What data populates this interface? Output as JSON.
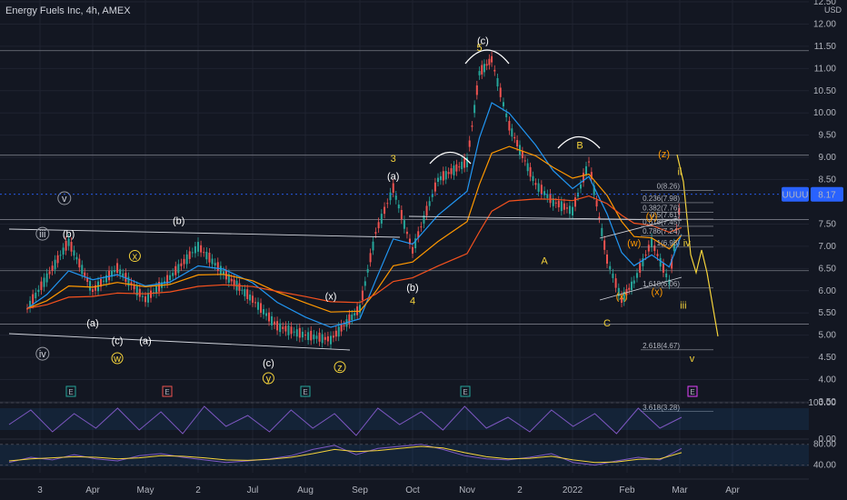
{
  "header": {
    "title": "Energy Fuels Inc, 4h, AMEX",
    "currency": "USD"
  },
  "price_tag": {
    "symbol": "UUUU",
    "value": "8.17",
    "color": "#2962ff"
  },
  "colors": {
    "background": "#131722",
    "up": "#26a69a",
    "down": "#ef5350",
    "ema_fast": "#2196f3",
    "ema_mid": "#ff9800",
    "ema_slow": "#f4511e",
    "wave_yellow": "#f5d33b",
    "wave_orange": "#ff9800",
    "white": "#ffffff"
  },
  "chart_data": [
    {
      "type": "line",
      "title": "Energy Fuels Inc, 4h, AMEX",
      "ylabel": "USD",
      "ylim": [
        3.5,
        12.5
      ],
      "y_ticks": [
        "12.50",
        "12.00",
        "11.50",
        "11.00",
        "10.50",
        "10.00",
        "9.50",
        "9.00",
        "8.50",
        "7.50",
        "7.00",
        "6.50",
        "6.00",
        "5.50",
        "5.00",
        "4.50",
        "4.00",
        "3.50"
      ],
      "x_ticks": [
        "3",
        "Apr",
        "May",
        "2",
        "Jul",
        "Aug",
        "Sep",
        "Oct",
        "Nov",
        "2",
        "2022",
        "Feb",
        "Mar",
        "Apr"
      ],
      "series": [
        {
          "name": "",
          "x": [
            "Mar 1",
            "Mar 10",
            "Mar 20",
            "Apr 1",
            "Apr 15",
            "May 1",
            "May 15",
            "Jun 1",
            "Jun 15",
            "Jul 1",
            "Jul 15",
            "Aug 1",
            "Aug 15",
            "Sep 1",
            "Sep 10",
            "Sep 20",
            "Oct 1",
            "Oct 15",
            "Nov 1",
            "Nov 8",
            "Nov 15",
            "Nov 25",
            "Dec 10",
            "Dec 20",
            "Jan 1",
            "Jan 10",
            "Jan 20",
            "Jan 28",
            "Feb 5",
            "Feb 15",
            "Feb 25",
            "Mar 2"
          ],
          "values": [
            5.6,
            6.3,
            7.1,
            6.0,
            6.5,
            5.8,
            6.3,
            7.0,
            6.4,
            5.8,
            5.2,
            5.0,
            4.9,
            5.6,
            7.3,
            8.3,
            6.9,
            8.5,
            8.9,
            10.9,
            11.2,
            9.7,
            8.4,
            8.0,
            7.8,
            8.9,
            6.7,
            5.8,
            6.2,
            7.1,
            6.2,
            8.17
          ]
        }
      ],
      "price_levels": [
        "0(8.26)",
        "0.236(7.98)",
        "0.382(7.76)",
        "0.5(7.61)",
        "0.618(7.45)",
        "0.786(7.24)",
        "1(6.98)",
        "1.618(6.06)",
        "2.618(4.67)",
        "3.618(3.28)"
      ],
      "wave_labels": [
        {
          "text": "(c)",
          "x": "Nov 10",
          "y": 11.55
        },
        {
          "text": "5",
          "x": "Nov 8",
          "y": 11.4
        },
        {
          "text": "3",
          "x": "Sep 20",
          "y": 8.9
        },
        {
          "text": "(a)",
          "x": "Sep 20",
          "y": 8.5
        },
        {
          "text": "(b)",
          "x": "Oct 1",
          "y": 6.0
        },
        {
          "text": "4",
          "x": "Oct 1",
          "y": 5.7
        },
        {
          "text": "B",
          "x": "Jan 5",
          "y": 9.2
        },
        {
          "text": "A",
          "x": "Dec 15",
          "y": 6.6
        },
        {
          "text": "C",
          "x": "Jan 20",
          "y": 5.2
        },
        {
          "text": "(z)",
          "x": "Feb 22",
          "y": 9.0
        },
        {
          "text": "ii",
          "x": "Mar 1",
          "y": 8.6
        },
        {
          "text": "iv",
          "x": "Mar 5",
          "y": 7.0
        },
        {
          "text": "iii",
          "x": "Mar 3",
          "y": 5.6
        },
        {
          "text": "v",
          "x": "Mar 8",
          "y": 4.4
        },
        {
          "text": "(y)",
          "x": "Feb 15",
          "y": 7.6
        },
        {
          "text": "(w)",
          "x": "Feb 5",
          "y": 7.0
        },
        {
          "text": "(x)",
          "x": "Jan 28",
          "y": 5.8
        },
        {
          "text": "(x)",
          "x": "Feb 18",
          "y": 5.9
        },
        {
          "text": "(b)",
          "x": "Mar 20",
          "y": 7.2
        },
        {
          "text": "(a)",
          "x": "Apr 1",
          "y": 5.2
        },
        {
          "text": "(c)",
          "x": "Apr 15",
          "y": 4.8
        },
        {
          "text": "(a)",
          "x": "May 1",
          "y": 4.8
        },
        {
          "text": "(b)",
          "x": "May 20",
          "y": 7.5
        },
        {
          "text": "(c)",
          "x": "Jul 10",
          "y": 4.3
        },
        {
          "text": "(x)",
          "x": "Aug 15",
          "y": 5.8
        },
        {
          "text": "v",
          "x": "Mar 18",
          "y": 8.0
        },
        {
          "text": "iii",
          "x": "Mar 8",
          "y": 7.2
        },
        {
          "text": "iv",
          "x": "Mar 8",
          "y": 4.5
        },
        {
          "text": "w",
          "x": "Apr 15",
          "y": 4.4
        },
        {
          "text": "x",
          "x": "Apr 25",
          "y": 6.7
        },
        {
          "text": "y",
          "x": "Jul 10",
          "y": 3.95
        },
        {
          "text": "z",
          "x": "Aug 20",
          "y": 4.2
        }
      ],
      "event_markers": [
        "E",
        "E",
        "E",
        "E",
        "E"
      ]
    },
    {
      "type": "line",
      "title": "",
      "ylim": [
        0,
        100
      ],
      "y_ticks": [
        "100.00",
        "0.00"
      ],
      "series": [
        {
          "name": "",
          "values": [
            40,
            80,
            20,
            70,
            30,
            85,
            25,
            75,
            15,
            90,
            35,
            65,
            20,
            80,
            30,
            70,
            10,
            85,
            40,
            75,
            25,
            90,
            30,
            60,
            20,
            80,
            35,
            70,
            15,
            85,
            30,
            60
          ]
        }
      ]
    },
    {
      "type": "line",
      "title": "",
      "ylim": [
        20,
        90
      ],
      "y_ticks": [
        "80.00",
        "40.00"
      ],
      "series": [
        {
          "name": "",
          "values": [
            45,
            55,
            50,
            60,
            52,
            48,
            58,
            62,
            55,
            50,
            45,
            48,
            52,
            58,
            70,
            78,
            60,
            72,
            76,
            80,
            70,
            58,
            52,
            50,
            55,
            62,
            45,
            40,
            48,
            55,
            50,
            72
          ]
        },
        {
          "name": "",
          "values": [
            48,
            52,
            54,
            56,
            55,
            52,
            54,
            58,
            57,
            54,
            50,
            49,
            51,
            55,
            62,
            70,
            66,
            68,
            72,
            76,
            73,
            64,
            56,
            52,
            53,
            57,
            50,
            45,
            46,
            51,
            52,
            64
          ]
        }
      ]
    }
  ]
}
